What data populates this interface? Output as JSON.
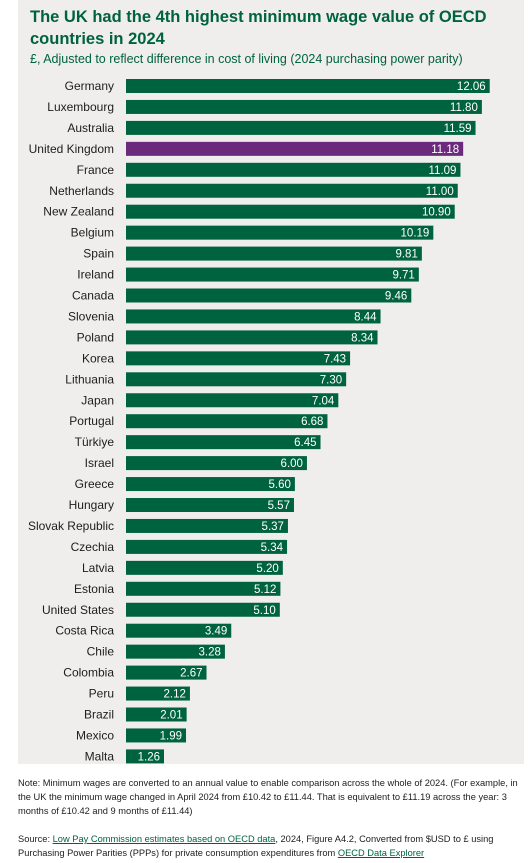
{
  "chart_data": {
    "type": "bar",
    "orientation": "horizontal",
    "title": "The UK had the 4th highest minimum wage value of OECD countries in 2024",
    "subtitle": "£, Adjusted to reflect difference in cost of living (2024 purchasing power parity)",
    "categories": [
      "Germany",
      "Luxembourg",
      "Australia",
      "United Kingdom",
      "France",
      "Netherlands",
      "New Zealand",
      "Belgium",
      "Spain",
      "Ireland",
      "Canada",
      "Slovenia",
      "Poland",
      "Korea",
      "Lithuania",
      "Japan",
      "Portugal",
      "Türkiye",
      "Israel",
      "Greece",
      "Hungary",
      "Slovak Republic",
      "Czechia",
      "Latvia",
      "Estonia",
      "United States",
      "Costa Rica",
      "Chile",
      "Colombia",
      "Peru",
      "Brazil",
      "Mexico",
      "Malta"
    ],
    "values": [
      12.06,
      11.8,
      11.59,
      11.18,
      11.09,
      11.0,
      10.9,
      10.19,
      9.81,
      9.71,
      9.46,
      8.44,
      8.34,
      7.43,
      7.3,
      7.04,
      6.68,
      6.45,
      6.0,
      5.6,
      5.57,
      5.37,
      5.34,
      5.2,
      5.12,
      5.1,
      3.49,
      3.28,
      2.67,
      2.12,
      2.01,
      1.99,
      1.26
    ],
    "value_labels": [
      "12.06",
      "11.80",
      "11.59",
      "11.18",
      "11.09",
      "11.00",
      "10.90",
      "10.19",
      "9.81",
      "9.71",
      "9.46",
      "8.44",
      "8.34",
      "7.43",
      "7.30",
      "7.04",
      "6.68",
      "6.45",
      "6.00",
      "5.60",
      "5.57",
      "5.37",
      "5.34",
      "5.20",
      "5.12",
      "5.10",
      "3.49",
      "3.28",
      "2.67",
      "2.12",
      "2.01",
      "1.99",
      "1.26"
    ],
    "highlight": "United Kingdom",
    "xlim": [
      0,
      12.6
    ],
    "grid": false,
    "legend": "none",
    "bar_color": "#00633f",
    "highlight_color": "#6c2a7c"
  },
  "footer": {
    "note": "Note: Minimum wages are converted to an annual value to enable comparison across the whole of 2024. (For example, in the UK the minimum wage changed in April 2024 from £10.42 to £11.44. That is equivalent to £11.19 across the year: 3 months of £10.42 and 9 months of £11.44)",
    "source_prefix": "Source: ",
    "source_link1": "Low Pay Commission estimates based on OECD data",
    "source_middle": ", 2024, Figure A4.2, Converted from $USD to £ using Purchasing Power Parities (PPPs) for private consumption expenditures from ",
    "source_link2": "OECD Data Explorer"
  }
}
